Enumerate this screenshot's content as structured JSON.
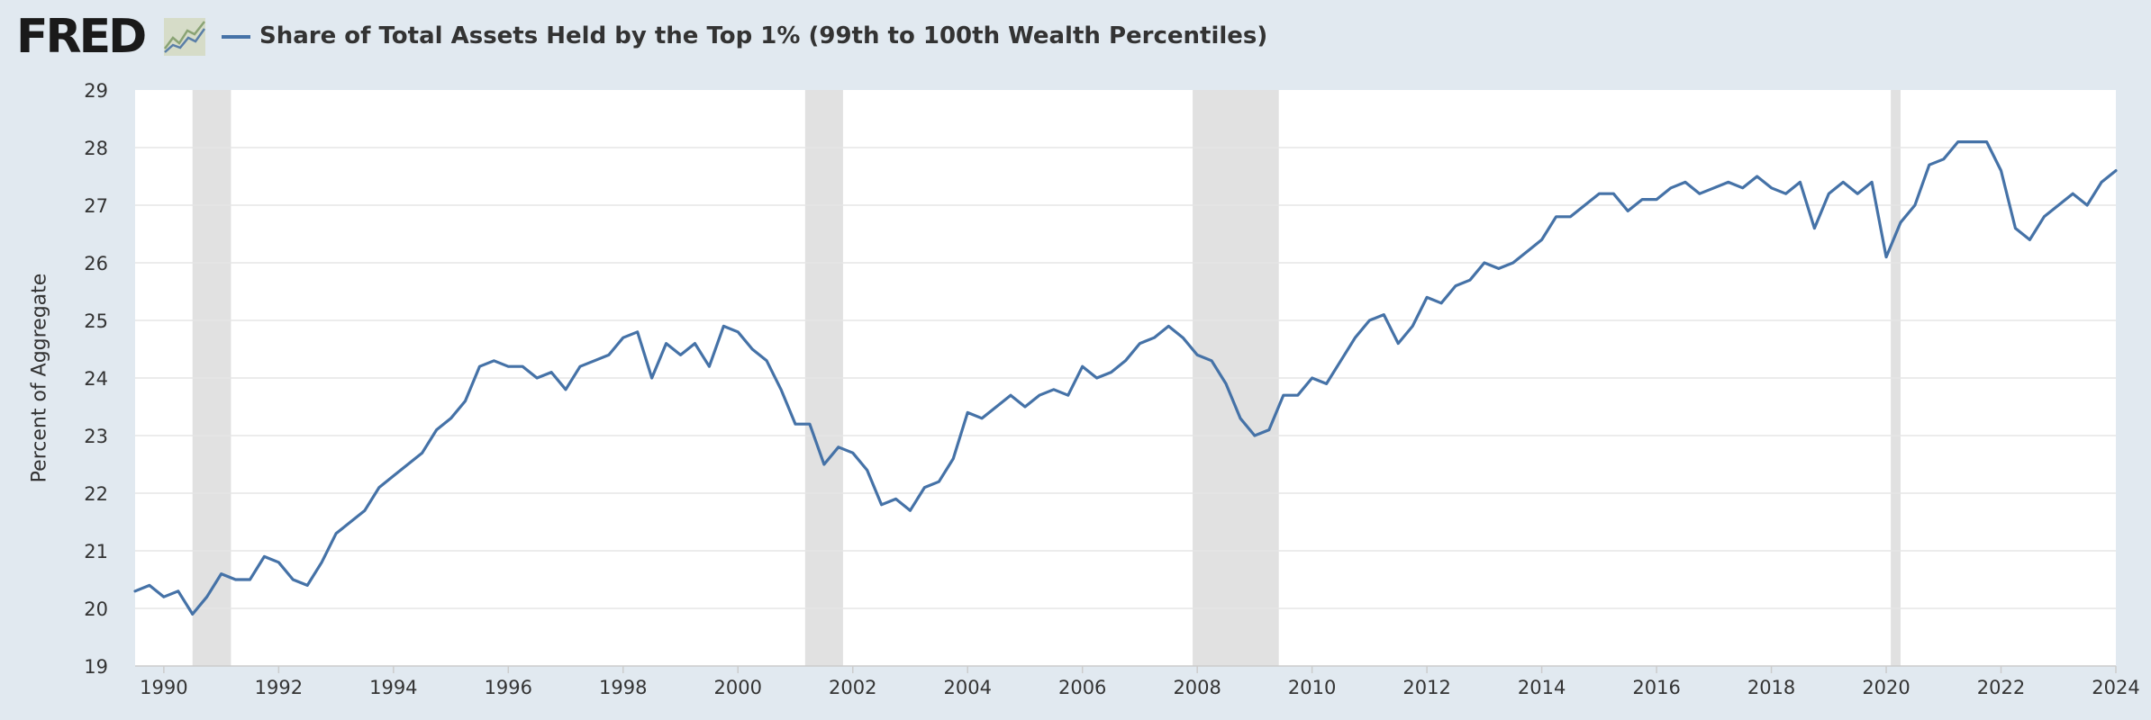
{
  "header": {
    "logo_text": "FRED",
    "title": "Share of Total Assets Held by the Top 1% (99th to 100th Wealth Percentiles)"
  },
  "colors": {
    "series": "#4572a7",
    "recession": "#e1e1e1",
    "grid": "#e6e6e6",
    "background": "#e1e9f0"
  },
  "chart_data": {
    "type": "line",
    "title": "Share of Total Assets Held by the Top 1% (99th to 100th Wealth Percentiles)",
    "xlabel": "",
    "ylabel": "Percent of Aggregate",
    "xlim": [
      1989.5,
      2024.0
    ],
    "ylim": [
      19,
      29
    ],
    "x_ticks": [
      "1990",
      "1992",
      "1994",
      "1996",
      "1998",
      "2000",
      "2002",
      "2004",
      "2006",
      "2008",
      "2010",
      "2012",
      "2014",
      "2016",
      "2018",
      "2020",
      "2022",
      "2024"
    ],
    "y_ticks": [
      "19",
      "20",
      "21",
      "22",
      "23",
      "24",
      "25",
      "26",
      "27",
      "28",
      "29"
    ],
    "grid": true,
    "recessions": [
      [
        1990.5,
        1991.17
      ],
      [
        2001.17,
        2001.83
      ],
      [
        2007.92,
        2009.42
      ],
      [
        2020.08,
        2020.25
      ]
    ],
    "series": [
      {
        "start": "1989-Q3",
        "frequency": "quarterly",
        "values": [
          20.3,
          20.4,
          20.2,
          20.3,
          19.9,
          20.2,
          20.6,
          20.5,
          20.5,
          20.9,
          20.8,
          20.5,
          20.4,
          20.8,
          21.3,
          21.5,
          21.7,
          22.1,
          22.3,
          22.5,
          22.7,
          23.1,
          23.3,
          23.6,
          24.2,
          24.3,
          24.2,
          24.2,
          24.0,
          24.1,
          23.8,
          24.2,
          24.3,
          24.4,
          24.7,
          24.8,
          24.0,
          24.6,
          24.4,
          24.6,
          24.2,
          24.9,
          24.8,
          24.5,
          24.3,
          23.8,
          23.2,
          23.2,
          22.5,
          22.8,
          22.7,
          22.4,
          21.8,
          21.9,
          21.7,
          22.1,
          22.2,
          22.6,
          23.4,
          23.3,
          23.5,
          23.7,
          23.5,
          23.7,
          23.8,
          23.7,
          24.2,
          24.0,
          24.1,
          24.3,
          24.6,
          24.7,
          24.9,
          24.7,
          24.4,
          24.3,
          23.9,
          23.3,
          23.0,
          23.1,
          23.7,
          23.7,
          24.0,
          23.9,
          24.3,
          24.7,
          25.0,
          25.1,
          24.6,
          24.9,
          25.4,
          25.3,
          25.6,
          25.7,
          26.0,
          25.9,
          26.0,
          26.2,
          26.4,
          26.8,
          26.8,
          27.0,
          27.2,
          27.2,
          26.9,
          27.1,
          27.1,
          27.3,
          27.4,
          27.2,
          27.3,
          27.4,
          27.3,
          27.5,
          27.3,
          27.2,
          27.4,
          26.6,
          27.2,
          27.4,
          27.2,
          27.4,
          26.1,
          26.7,
          27.0,
          27.7,
          27.8,
          28.1,
          28.1,
          28.1,
          27.6,
          26.6,
          26.4,
          26.8,
          27.0,
          27.2,
          27.0,
          27.4,
          27.6
        ]
      }
    ]
  }
}
